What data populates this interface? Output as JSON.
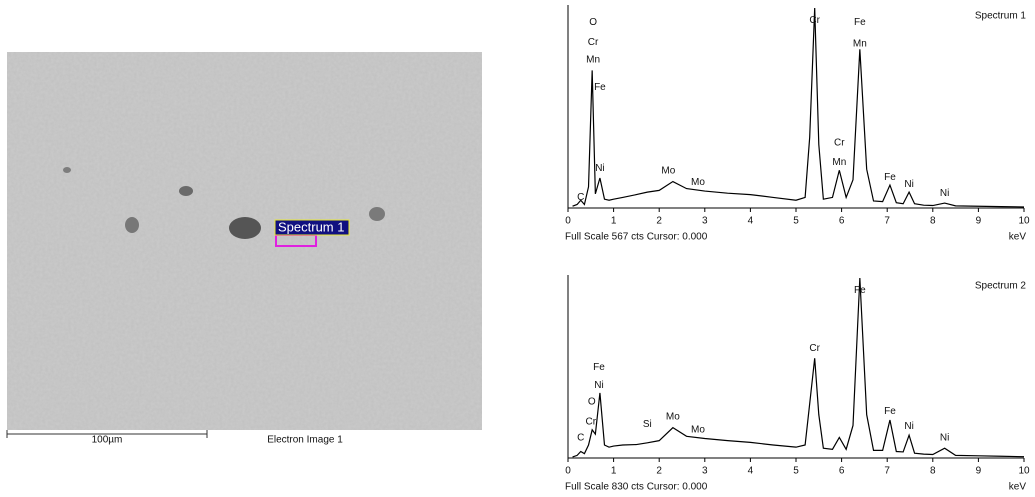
{
  "image": {
    "marker_label": "Spectrum 1",
    "scale_bar_label": "100µm",
    "caption": "Electron Image 1"
  },
  "chart_data": [
    {
      "type": "line",
      "title": "Spectrum 1",
      "xlabel": "keV",
      "footer": "Full Scale 567 cts Cursor: 0.000",
      "x": [
        0.1,
        0.2,
        0.28,
        0.36,
        0.45,
        0.53,
        0.6,
        0.7,
        0.8,
        0.9,
        1.0,
        1.2,
        1.5,
        1.74,
        2.0,
        2.3,
        2.6,
        3.0,
        3.5,
        4.0,
        4.5,
        5.0,
        5.2,
        5.3,
        5.41,
        5.5,
        5.6,
        5.8,
        5.95,
        6.1,
        6.25,
        6.4,
        6.55,
        6.7,
        6.9,
        7.06,
        7.2,
        7.35,
        7.48,
        7.6,
        7.8,
        8.0,
        8.26,
        8.5,
        9.0,
        9.5,
        10.0
      ],
      "series": [
        {
          "color": "#000000",
          "values": [
            5,
            10,
            22,
            10,
            60,
            390,
            40,
            85,
            25,
            22,
            25,
            30,
            38,
            45,
            50,
            75,
            55,
            48,
            42,
            38,
            30,
            22,
            30,
            200,
            567,
            180,
            25,
            30,
            107,
            30,
            80,
            450,
            110,
            20,
            18,
            65,
            15,
            12,
            45,
            12,
            8,
            7,
            14,
            6,
            5,
            4,
            3
          ]
        }
      ],
      "xlim": [
        0,
        10
      ],
      "xticks": [
        0,
        1,
        2,
        3,
        4,
        5,
        6,
        7,
        8,
        9,
        10
      ],
      "ylim": [
        0,
        567
      ],
      "annotations": [
        {
          "text": "C",
          "x": 0.28,
          "y": 30
        },
        {
          "text": "O",
          "x": 0.55,
          "y": 526
        },
        {
          "text": "Cr",
          "x": 0.55,
          "y": 470
        },
        {
          "text": "Mn",
          "x": 0.55,
          "y": 420
        },
        {
          "text": "Fe",
          "x": 0.7,
          "y": 342
        },
        {
          "text": "Ni",
          "x": 0.7,
          "y": 112
        },
        {
          "text": "Mo",
          "x": 2.2,
          "y": 106
        },
        {
          "text": "Mo",
          "x": 2.85,
          "y": 73
        },
        {
          "text": "Cr",
          "x": 5.41,
          "y": 532
        },
        {
          "text": "Fe",
          "x": 6.4,
          "y": 526
        },
        {
          "text": "Mn",
          "x": 6.4,
          "y": 465
        },
        {
          "text": "Cr",
          "x": 5.95,
          "y": 185
        },
        {
          "text": "Mn",
          "x": 5.95,
          "y": 129
        },
        {
          "text": "Fe",
          "x": 7.06,
          "y": 87
        },
        {
          "text": "Ni",
          "x": 7.48,
          "y": 67
        },
        {
          "text": "Ni",
          "x": 8.26,
          "y": 42
        }
      ]
    },
    {
      "type": "line",
      "title": "Spectrum 2",
      "xlabel": "keV",
      "footer": "Full Scale 830 cts Cursor: 0.000",
      "x": [
        0.1,
        0.2,
        0.28,
        0.36,
        0.45,
        0.53,
        0.6,
        0.7,
        0.8,
        0.9,
        1.0,
        1.2,
        1.5,
        1.74,
        2.0,
        2.3,
        2.6,
        3.0,
        3.5,
        4.0,
        4.5,
        5.0,
        5.2,
        5.3,
        5.41,
        5.5,
        5.6,
        5.8,
        5.95,
        6.1,
        6.25,
        6.4,
        6.55,
        6.7,
        6.9,
        7.06,
        7.2,
        7.35,
        7.48,
        7.6,
        7.8,
        8.0,
        8.26,
        8.5,
        9.0,
        9.5,
        10.0
      ],
      "series": [
        {
          "color": "#000000",
          "values": [
            5,
            12,
            30,
            20,
            60,
            130,
            110,
            300,
            60,
            50,
            55,
            60,
            62,
            70,
            80,
            140,
            100,
            90,
            80,
            72,
            60,
            50,
            60,
            250,
            460,
            200,
            45,
            40,
            95,
            40,
            150,
            830,
            200,
            35,
            35,
            175,
            30,
            28,
            105,
            22,
            18,
            16,
            45,
            12,
            10,
            8,
            6
          ]
        }
      ],
      "xlim": [
        0,
        10
      ],
      "xticks": [
        0,
        1,
        2,
        3,
        4,
        5,
        6,
        7,
        8,
        9,
        10
      ],
      "ylim": [
        0,
        830
      ],
      "annotations": [
        {
          "text": "C",
          "x": 0.28,
          "y": 92
        },
        {
          "text": "Cr",
          "x": 0.5,
          "y": 166
        },
        {
          "text": "O",
          "x": 0.52,
          "y": 258
        },
        {
          "text": "Ni",
          "x": 0.68,
          "y": 336
        },
        {
          "text": "Fe",
          "x": 0.68,
          "y": 419
        },
        {
          "text": "Si",
          "x": 1.74,
          "y": 156
        },
        {
          "text": "Mo",
          "x": 2.3,
          "y": 189
        },
        {
          "text": "Mo",
          "x": 2.85,
          "y": 129
        },
        {
          "text": "Cr",
          "x": 5.41,
          "y": 506
        },
        {
          "text": "Fe",
          "x": 6.4,
          "y": 773
        },
        {
          "text": "Fe",
          "x": 7.06,
          "y": 216
        },
        {
          "text": "Ni",
          "x": 7.48,
          "y": 147
        },
        {
          "text": "Ni",
          "x": 8.26,
          "y": 92
        }
      ]
    }
  ]
}
